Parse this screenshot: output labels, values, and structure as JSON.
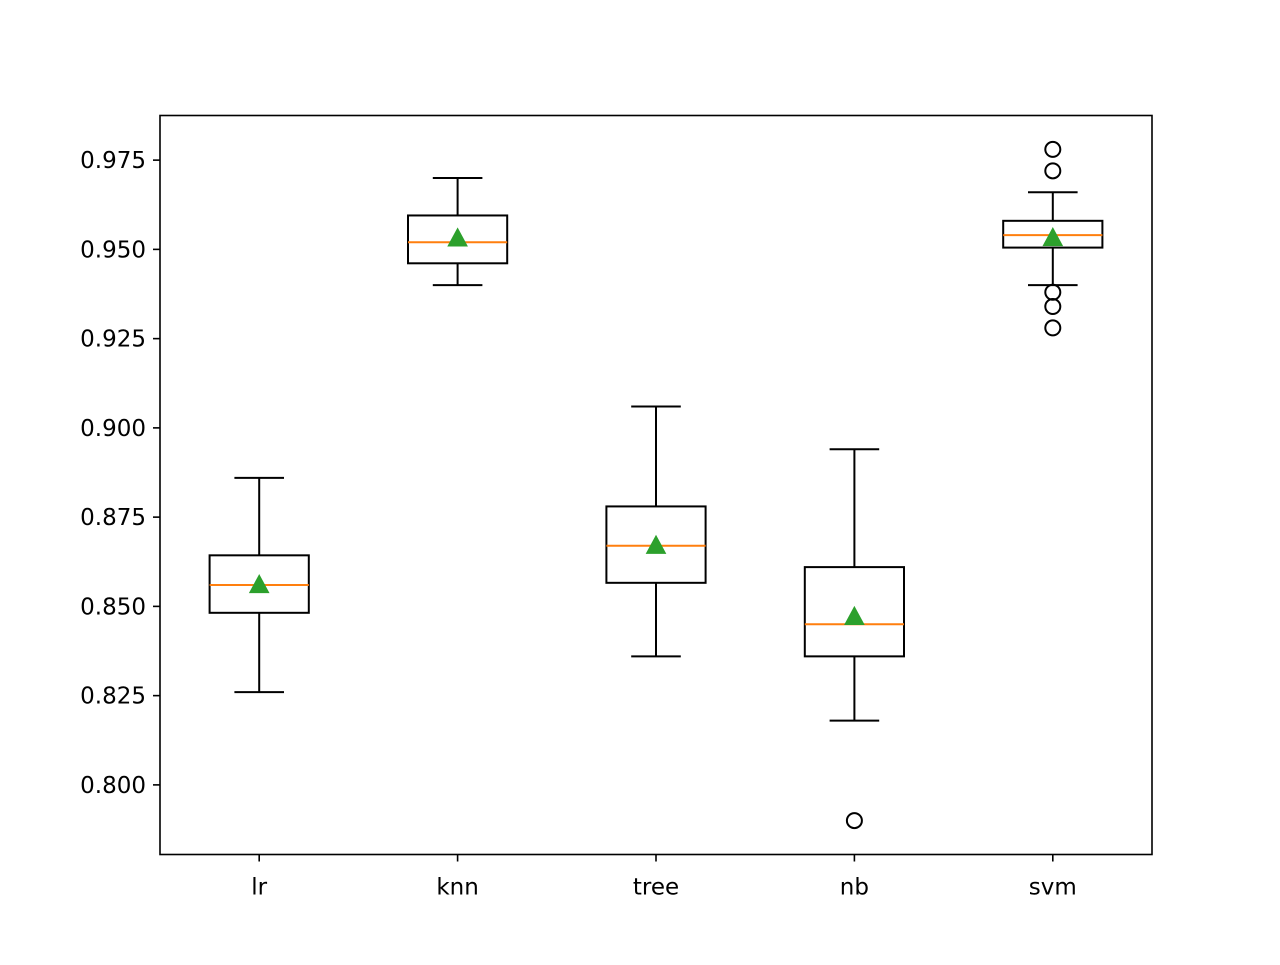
{
  "chart_data": {
    "type": "box",
    "categories": [
      "lr",
      "knn",
      "tree",
      "nb",
      "svm"
    ],
    "ylim": [
      0.7805,
      0.9875
    ],
    "yticks": [
      0.8,
      0.825,
      0.85,
      0.875,
      0.9,
      0.925,
      0.95,
      0.975
    ],
    "ytick_labels": [
      "0.800",
      "0.825",
      "0.850",
      "0.875",
      "0.900",
      "0.925",
      "0.950",
      "0.975"
    ],
    "grid": false,
    "boxes": [
      {
        "category": "lr",
        "whisker_low": 0.826,
        "q1": 0.8482,
        "median": 0.856,
        "q3": 0.8643,
        "whisker_high": 0.886,
        "mean": 0.8561,
        "outliers": []
      },
      {
        "category": "knn",
        "whisker_low": 0.94,
        "q1": 0.9461,
        "median": 0.952,
        "q3": 0.9595,
        "whisker_high": 0.97,
        "mean": 0.9532,
        "outliers": []
      },
      {
        "category": "tree",
        "whisker_low": 0.836,
        "q1": 0.8566,
        "median": 0.867,
        "q3": 0.878,
        "whisker_high": 0.906,
        "mean": 0.8671,
        "outliers": []
      },
      {
        "category": "nb",
        "whisker_low": 0.818,
        "q1": 0.836,
        "median": 0.845,
        "q3": 0.861,
        "whisker_high": 0.894,
        "mean": 0.8472,
        "outliers": [
          0.79
        ]
      },
      {
        "category": "svm",
        "whisker_low": 0.94,
        "q1": 0.9505,
        "median": 0.954,
        "q3": 0.958,
        "whisker_high": 0.966,
        "mean": 0.9533,
        "outliers": [
          0.978,
          0.972,
          0.938,
          0.934,
          0.928
        ]
      }
    ],
    "colors": {
      "box": "#000000",
      "median": "#ff7f0e",
      "mean": "#2ca02c",
      "outlier": "#000000"
    }
  }
}
